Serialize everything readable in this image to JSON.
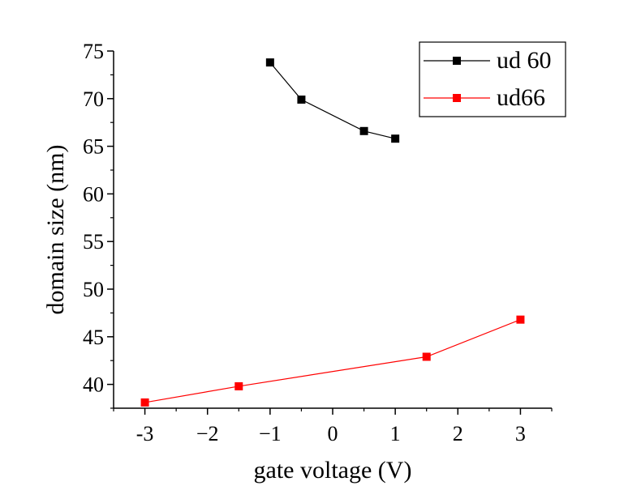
{
  "chart_data": {
    "type": "line",
    "xlabel": "gate voltage (V)",
    "ylabel": "domain size (nm)",
    "xlim": [
      -3.5,
      3.5
    ],
    "ylim": [
      37.5,
      75
    ],
    "xticks": [
      -3,
      -2,
      -1,
      0,
      1,
      2,
      3
    ],
    "xtick_labels": [
      "-3",
      "−2",
      "−1",
      "0",
      "1",
      "2",
      "3"
    ],
    "yticks": [
      40,
      45,
      50,
      55,
      60,
      65,
      70,
      75
    ],
    "ytick_labels": [
      "40",
      "45",
      "50",
      "55",
      "60",
      "65",
      "70",
      "75"
    ],
    "legend_position": "top-right",
    "series": [
      {
        "name": "ud 60",
        "color": "#000000",
        "marker": "square",
        "x": [
          -1,
          -0.5,
          0.5,
          1
        ],
        "y": [
          73.8,
          69.9,
          66.6,
          65.8
        ]
      },
      {
        "name": "ud66",
        "color": "#ff0000",
        "marker": "square",
        "x": [
          -3,
          -1.5,
          1.5,
          3
        ],
        "y": [
          38.1,
          39.8,
          42.9,
          46.8
        ]
      }
    ]
  }
}
